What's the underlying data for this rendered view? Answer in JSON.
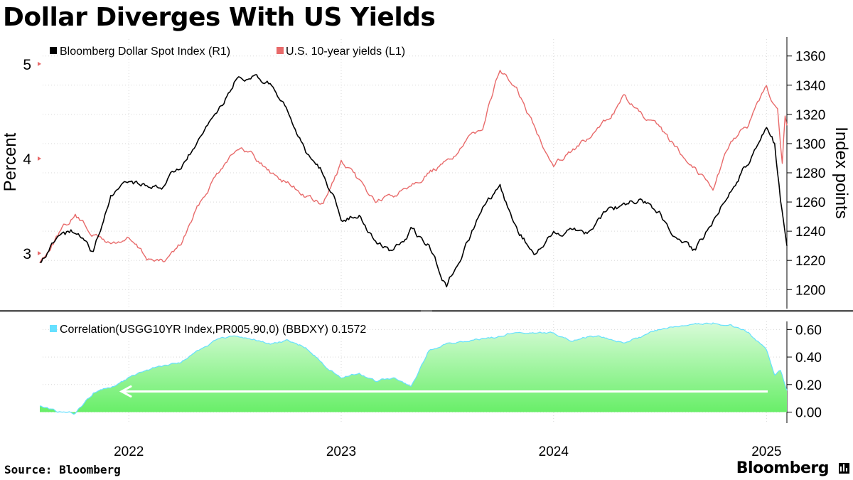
{
  "title": "Dollar Diverges With US Yields",
  "source": "Source: Bloomberg",
  "brand": "Bloomberg",
  "colors": {
    "dollar": "#000000",
    "yields": "#e86a6a",
    "corr_fill": "#66ee66",
    "corr_fill_top": "#d8fbd8",
    "corr_line": "#66e0ff",
    "arrow": "#ffffff",
    "divider": "#555555",
    "grid": "#d9d9d9"
  },
  "chart_data": [
    {
      "type": "line",
      "x_axis": {
        "type": "date",
        "range": [
          "2021-08-01",
          "2025-02-05"
        ],
        "tick_labels": [
          "2022",
          "2023",
          "2024",
          "2025"
        ]
      },
      "left_axis": {
        "label": "Percent",
        "ticks": [
          3,
          4,
          5
        ],
        "range": [
          2.4,
          5.3
        ]
      },
      "right_axis": {
        "label": "Index points",
        "ticks": [
          1200,
          1220,
          1240,
          1260,
          1280,
          1300,
          1320,
          1340,
          1360
        ],
        "range": [
          1186,
          1374
        ]
      },
      "legend": {
        "placement": "top-left",
        "entries": [
          "Bloomberg Dollar Spot Index (R1)",
          "U.S. 10-year yields (L1)"
        ]
      },
      "grid": true,
      "series": [
        {
          "name": "Bloomberg Dollar Spot Index (R1)",
          "axis": "right",
          "color": "#000000",
          "points": [
            [
              "2021-08-01",
              1218
            ],
            [
              "2021-09-01",
              1238
            ],
            [
              "2021-10-01",
              1240
            ],
            [
              "2021-11-01",
              1225
            ],
            [
              "2021-12-01",
              1262
            ],
            [
              "2022-01-01",
              1275
            ],
            [
              "2022-02-01",
              1270
            ],
            [
              "2022-03-01",
              1272
            ],
            [
              "2022-04-01",
              1285
            ],
            [
              "2022-05-01",
              1300
            ],
            [
              "2022-06-01",
              1320
            ],
            [
              "2022-07-01",
              1342
            ],
            [
              "2022-08-01",
              1345
            ],
            [
              "2022-09-01",
              1340
            ],
            [
              "2022-10-01",
              1320
            ],
            [
              "2022-11-01",
              1295
            ],
            [
              "2022-12-01",
              1280
            ],
            [
              "2023-01-01",
              1250
            ],
            [
              "2023-02-01",
              1252
            ],
            [
              "2023-03-01",
              1232
            ],
            [
              "2023-04-01",
              1225
            ],
            [
              "2023-05-01",
              1240
            ],
            [
              "2023-06-01",
              1230
            ],
            [
              "2023-07-01",
              1203
            ],
            [
              "2023-08-01",
              1228
            ],
            [
              "2023-09-01",
              1256
            ],
            [
              "2023-10-01",
              1268
            ],
            [
              "2023-11-01",
              1240
            ],
            [
              "2023-12-01",
              1225
            ],
            [
              "2024-01-01",
              1238
            ],
            [
              "2024-02-01",
              1242
            ],
            [
              "2024-03-01",
              1240
            ],
            [
              "2024-04-01",
              1255
            ],
            [
              "2024-05-01",
              1258
            ],
            [
              "2024-06-01",
              1262
            ],
            [
              "2024-07-01",
              1252
            ],
            [
              "2024-08-01",
              1232
            ],
            [
              "2024-09-01",
              1225
            ],
            [
              "2024-10-01",
              1248
            ],
            [
              "2024-11-01",
              1270
            ],
            [
              "2024-12-01",
              1288
            ],
            [
              "2025-01-01",
              1312
            ],
            [
              "2025-01-15",
              1300
            ],
            [
              "2025-01-25",
              1262
            ],
            [
              "2025-02-05",
              1230
            ]
          ]
        },
        {
          "name": "U.S. 10-year yields (L1)",
          "axis": "left",
          "color": "#e86a6a",
          "points": [
            [
              "2021-08-01",
              2.9
            ],
            [
              "2021-09-01",
              3.2
            ],
            [
              "2021-10-01",
              3.4
            ],
            [
              "2021-11-01",
              3.2
            ],
            [
              "2021-12-01",
              3.1
            ],
            [
              "2022-01-01",
              3.15
            ],
            [
              "2022-02-01",
              2.95
            ],
            [
              "2022-03-01",
              2.9
            ],
            [
              "2022-04-01",
              3.1
            ],
            [
              "2022-05-01",
              3.5
            ],
            [
              "2022-06-01",
              3.85
            ],
            [
              "2022-07-01",
              4.1
            ],
            [
              "2022-08-01",
              4.05
            ],
            [
              "2022-09-01",
              3.85
            ],
            [
              "2022-10-01",
              3.75
            ],
            [
              "2022-11-01",
              3.6
            ],
            [
              "2022-12-01",
              3.5
            ],
            [
              "2023-01-01",
              3.95
            ],
            [
              "2023-02-01",
              3.75
            ],
            [
              "2023-03-01",
              3.55
            ],
            [
              "2023-04-01",
              3.6
            ],
            [
              "2023-05-01",
              3.75
            ],
            [
              "2023-06-01",
              3.85
            ],
            [
              "2023-07-01",
              3.95
            ],
            [
              "2023-08-01",
              4.15
            ],
            [
              "2023-09-01",
              4.35
            ],
            [
              "2023-10-01",
              4.95
            ],
            [
              "2023-11-01",
              4.7
            ],
            [
              "2023-12-01",
              4.3
            ],
            [
              "2024-01-01",
              3.95
            ],
            [
              "2024-02-01",
              4.1
            ],
            [
              "2024-03-01",
              4.2
            ],
            [
              "2024-04-01",
              4.4
            ],
            [
              "2024-05-01",
              4.65
            ],
            [
              "2024-06-01",
              4.45
            ],
            [
              "2024-07-01",
              4.3
            ],
            [
              "2024-08-01",
              4.1
            ],
            [
              "2024-09-01",
              3.9
            ],
            [
              "2024-10-01",
              3.7
            ],
            [
              "2024-11-01",
              4.2
            ],
            [
              "2024-12-01",
              4.35
            ],
            [
              "2025-01-01",
              4.75
            ],
            [
              "2025-01-12",
              4.6
            ],
            [
              "2025-01-20",
              4.55
            ],
            [
              "2025-01-28",
              3.95
            ],
            [
              "2025-02-02",
              4.45
            ],
            [
              "2025-02-05",
              4.35
            ]
          ]
        }
      ]
    },
    {
      "type": "area",
      "x_axis": {
        "type": "date",
        "range": [
          "2021-08-01",
          "2025-02-05"
        ]
      },
      "y_axis": {
        "ticks": [
          0.0,
          0.2,
          0.4,
          0.6
        ],
        "tick_labels": [
          "0.00",
          "0.20",
          "0.40",
          "0.60"
        ],
        "range": [
          -0.08,
          0.7
        ]
      },
      "legend": {
        "placement": "top-left",
        "entries": [
          "Correlation(USGG10YR Index,PR005,90,0) (BBDXY) 0.1572"
        ]
      },
      "arrow_level": 0.15,
      "series": [
        {
          "name": "Correlation(USGG10YR Index,PR005,90,0) (BBDXY) 0.1572",
          "points": [
            [
              "2021-08-01",
              0.05
            ],
            [
              "2021-09-01",
              0.0
            ],
            [
              "2021-10-01",
              -0.01
            ],
            [
              "2021-11-01",
              0.14
            ],
            [
              "2021-12-01",
              0.18
            ],
            [
              "2022-01-01",
              0.25
            ],
            [
              "2022-02-01",
              0.3
            ],
            [
              "2022-03-01",
              0.34
            ],
            [
              "2022-04-01",
              0.36
            ],
            [
              "2022-05-01",
              0.45
            ],
            [
              "2022-06-01",
              0.52
            ],
            [
              "2022-07-01",
              0.55
            ],
            [
              "2022-08-01",
              0.53
            ],
            [
              "2022-09-01",
              0.5
            ],
            [
              "2022-10-01",
              0.52
            ],
            [
              "2022-11-01",
              0.47
            ],
            [
              "2022-12-01",
              0.35
            ],
            [
              "2023-01-01",
              0.25
            ],
            [
              "2023-02-01",
              0.28
            ],
            [
              "2023-03-01",
              0.23
            ],
            [
              "2023-04-01",
              0.25
            ],
            [
              "2023-05-01",
              0.18
            ],
            [
              "2023-06-01",
              0.45
            ],
            [
              "2023-07-01",
              0.5
            ],
            [
              "2023-08-01",
              0.51
            ],
            [
              "2023-09-01",
              0.53
            ],
            [
              "2023-10-01",
              0.55
            ],
            [
              "2023-11-01",
              0.59
            ],
            [
              "2023-12-01",
              0.58
            ],
            [
              "2024-01-01",
              0.57
            ],
            [
              "2024-02-01",
              0.52
            ],
            [
              "2024-03-01",
              0.55
            ],
            [
              "2024-04-01",
              0.54
            ],
            [
              "2024-05-01",
              0.5
            ],
            [
              "2024-06-01",
              0.55
            ],
            [
              "2024-07-01",
              0.6
            ],
            [
              "2024-08-01",
              0.62
            ],
            [
              "2024-09-01",
              0.64
            ],
            [
              "2024-10-01",
              0.65
            ],
            [
              "2024-11-01",
              0.63
            ],
            [
              "2024-12-01",
              0.58
            ],
            [
              "2025-01-01",
              0.45
            ],
            [
              "2025-01-15",
              0.28
            ],
            [
              "2025-01-25",
              0.3
            ],
            [
              "2025-02-05",
              0.1572
            ]
          ]
        }
      ]
    }
  ]
}
